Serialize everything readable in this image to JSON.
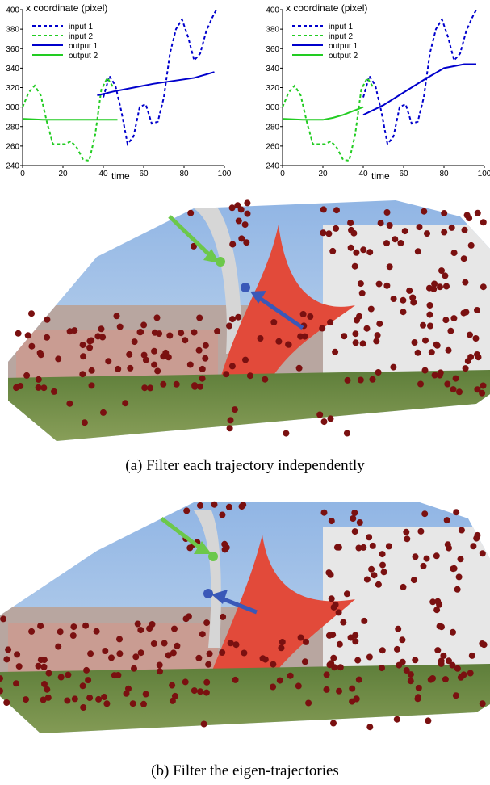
{
  "chart_data": [
    {
      "type": "line",
      "title": "",
      "ylabel": "x coordinate (pixel)",
      "xlabel": "time",
      "xlim": [
        0,
        100
      ],
      "ylim": [
        240,
        400
      ],
      "xticks": [
        0,
        20,
        40,
        60,
        80,
        100
      ],
      "yticks": [
        240,
        260,
        280,
        300,
        320,
        340,
        360,
        380,
        400
      ],
      "legend": "top-left",
      "series": [
        {
          "name": "input 1",
          "color": "#0000cc",
          "style": "dashed",
          "x": [
            40,
            43,
            46,
            49,
            52,
            55,
            58,
            61,
            64,
            67,
            70,
            73,
            76,
            79,
            82,
            85,
            88,
            91,
            94,
            96
          ],
          "y": [
            310,
            332,
            322,
            295,
            262,
            270,
            300,
            303,
            283,
            285,
            310,
            355,
            380,
            390,
            372,
            348,
            355,
            378,
            392,
            400
          ]
        },
        {
          "name": "input 2",
          "color": "#22cc22",
          "style": "dashed",
          "x": [
            0,
            3,
            6,
            9,
            12,
            15,
            18,
            21,
            24,
            27,
            30,
            33,
            36,
            39,
            42,
            45
          ],
          "y": [
            300,
            315,
            322,
            312,
            285,
            262,
            262,
            262,
            265,
            258,
            246,
            245,
            272,
            318,
            330,
            320
          ]
        },
        {
          "name": "output 1",
          "color": "#0000cc",
          "style": "solid",
          "x": [
            37,
            45,
            55,
            65,
            75,
            85,
            95
          ],
          "y": [
            312,
            316,
            320,
            324,
            327,
            330,
            336
          ]
        },
        {
          "name": "output 2",
          "color": "#22cc22",
          "style": "solid",
          "x": [
            0,
            10,
            20,
            30,
            40,
            47
          ],
          "y": [
            288,
            287,
            287,
            287,
            287,
            287
          ]
        }
      ]
    },
    {
      "type": "line",
      "title": "",
      "ylabel": "x coordinate (pixel)",
      "xlabel": "time",
      "xlim": [
        0,
        100
      ],
      "ylim": [
        240,
        400
      ],
      "xticks": [
        0,
        20,
        40,
        60,
        80,
        100
      ],
      "yticks": [
        240,
        260,
        280,
        300,
        320,
        340,
        360,
        380,
        400
      ],
      "legend": "top-left",
      "series": [
        {
          "name": "input 1",
          "color": "#0000cc",
          "style": "dashed",
          "x": [
            40,
            43,
            46,
            49,
            52,
            55,
            58,
            61,
            64,
            67,
            70,
            73,
            76,
            79,
            82,
            85,
            88,
            91,
            94,
            96
          ],
          "y": [
            310,
            332,
            322,
            295,
            262,
            270,
            300,
            303,
            283,
            285,
            310,
            355,
            380,
            390,
            372,
            348,
            355,
            378,
            392,
            400
          ]
        },
        {
          "name": "input 2",
          "color": "#22cc22",
          "style": "dashed",
          "x": [
            0,
            3,
            6,
            9,
            12,
            15,
            18,
            21,
            24,
            27,
            30,
            33,
            36,
            39,
            42,
            45
          ],
          "y": [
            300,
            315,
            322,
            312,
            285,
            262,
            262,
            262,
            265,
            258,
            246,
            245,
            272,
            318,
            330,
            320
          ]
        },
        {
          "name": "output 1",
          "color": "#0000cc",
          "style": "solid",
          "x": [
            40,
            50,
            60,
            70,
            80,
            90,
            96
          ],
          "y": [
            292,
            302,
            315,
            328,
            340,
            344,
            344
          ]
        },
        {
          "name": "output 2",
          "color": "#22cc22",
          "style": "solid",
          "x": [
            0,
            10,
            20,
            25,
            30,
            35,
            40
          ],
          "y": [
            288,
            287,
            287,
            289,
            292,
            296,
            300
          ]
        }
      ]
    }
  ],
  "captions": {
    "a": "(a)  Filter each trajectory independently",
    "b": "(b)  Filter the eigen-trajectories"
  }
}
